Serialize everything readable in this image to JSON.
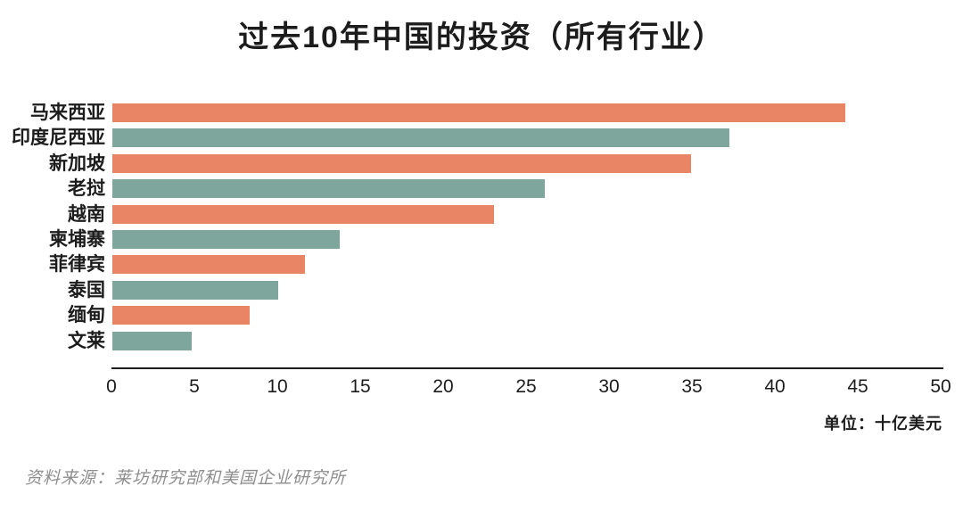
{
  "page": {
    "title": "过去10年中国的投资（所有行业）",
    "unit_label": "单位：十亿美元",
    "source": "资料来源：莱坊研究部和美国企业研究所"
  },
  "colors": {
    "orange": "#E98465",
    "teal": "#7FA69D",
    "axis": "#1c1c1c",
    "source_text": "#8e8e8e"
  },
  "chart_data": {
    "type": "bar",
    "orientation": "horizontal",
    "title": "过去10年中国的投资（所有行业）",
    "categories": [
      "马来西亚",
      "印度尼西亚",
      "新加坡",
      "老挝",
      "越南",
      "柬埔寨",
      "菲律宾",
      "泰国",
      "缅甸",
      "文莱"
    ],
    "values": [
      44.2,
      37.2,
      34.9,
      26.1,
      23.0,
      13.7,
      11.6,
      10.0,
      8.3,
      4.8
    ],
    "bar_colors": [
      "#E98465",
      "#7FA69D",
      "#E98465",
      "#7FA69D",
      "#E98465",
      "#7FA69D",
      "#E98465",
      "#7FA69D",
      "#E98465",
      "#7FA69D"
    ],
    "xlabel": "",
    "ylabel": "",
    "xlim": [
      0,
      50
    ],
    "x_ticks": [
      0,
      5,
      10,
      15,
      20,
      25,
      30,
      35,
      40,
      45,
      50
    ],
    "grid": false,
    "legend": false,
    "unit_label": "单位：十亿美元",
    "source": "资料来源：莱坊研究部和美国企业研究所"
  }
}
